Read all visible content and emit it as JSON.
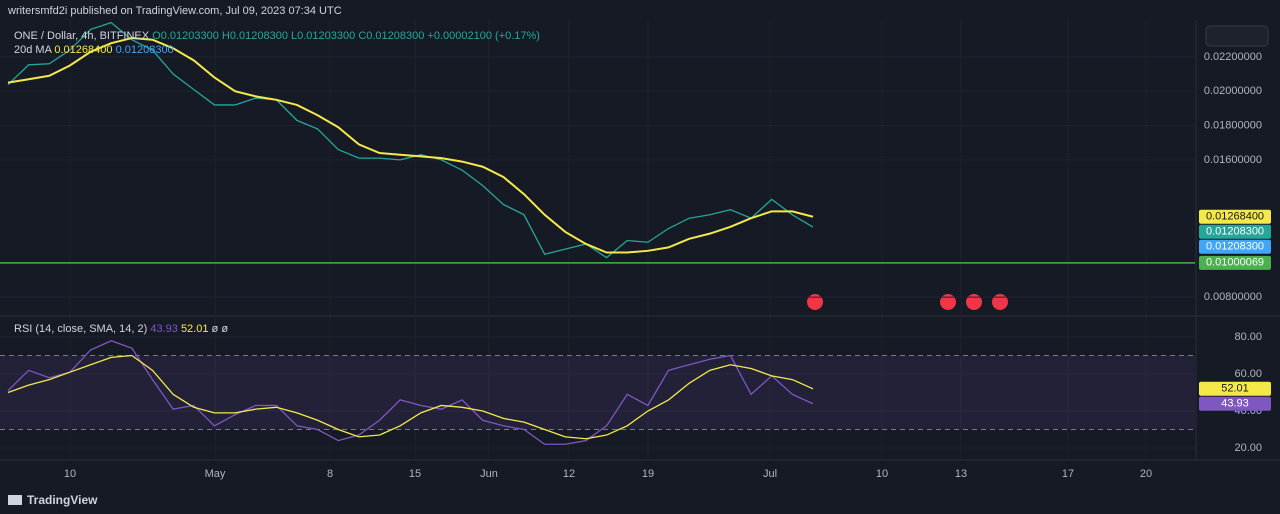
{
  "header": "writersmfd2i published on TradingView.com, Jul 09, 2023 07:34 UTC",
  "footer": "TradingView",
  "x_axis_labels": [
    "10",
    "May",
    "8",
    "15",
    "Jun",
    "12",
    "19",
    "Jul",
    "10",
    "13",
    "17",
    "20"
  ],
  "chart_data": [
    {
      "type": "line",
      "legend_texts": [
        "O0.01203300",
        "H0.01208300",
        "L0.01203300",
        "C0.01208300",
        "+0.00002100 (+0.17%)"
      ],
      "legend_values": [
        "0.01268400",
        "0.01208300"
      ],
      "ylim": [
        0.00696,
        0.02415
      ],
      "yticks": [
        {
          "value": 0.008,
          "label": "0.00800000"
        },
        {
          "value": 0.016,
          "label": "0.01600000"
        },
        {
          "value": 0.018,
          "label": "0.01800000"
        },
        {
          "value": 0.02,
          "label": "0.02000000"
        },
        {
          "value": 0.022,
          "label": "0.02200000"
        }
      ],
      "series": [
        {
          "name": "ONE / Dollar, 4h, BITFINEX",
          "color": "#26a69a",
          "values": [
            0.02038,
            0.02154,
            0.0216,
            0.0224,
            0.0236,
            0.024,
            0.023,
            0.0224,
            0.021,
            0.0201,
            0.0192,
            0.0192,
            0.0196,
            0.0195,
            0.0183,
            0.0178,
            0.0166,
            0.0161,
            0.0161,
            0.016,
            0.0163,
            0.016,
            0.0154,
            0.0145,
            0.0134,
            0.0128,
            0.0105,
            0.0108,
            0.0111,
            0.0103,
            0.0113,
            0.0112,
            0.012,
            0.0126,
            0.0128,
            0.0131,
            0.0126,
            0.0137,
            0.0128,
            0.012083
          ]
        },
        {
          "name": "20d MA",
          "color": "#f5e94a",
          "values": [
            0.0205,
            0.0207,
            0.0209,
            0.0215,
            0.0223,
            0.0228,
            0.0231,
            0.023,
            0.0225,
            0.0218,
            0.0208,
            0.02,
            0.0197,
            0.0195,
            0.0192,
            0.0186,
            0.0179,
            0.0169,
            0.0164,
            0.0163,
            0.0162,
            0.0161,
            0.0159,
            0.0156,
            0.015,
            0.014,
            0.0128,
            0.0118,
            0.0111,
            0.0106,
            0.0106,
            0.0107,
            0.0109,
            0.0114,
            0.0117,
            0.0121,
            0.0126,
            0.013,
            0.013,
            0.012684
          ]
        }
      ],
      "hlines": [
        {
          "value": 0.01000069,
          "label": "0.01000069",
          "color": "#4caf50"
        }
      ],
      "badges": [
        {
          "value": 0.012684,
          "label": "0.01268400",
          "color": "#f5e94a"
        },
        {
          "value": 0.012083,
          "label": "0.01208300",
          "color": "#26a69a"
        },
        {
          "value": 0.012083,
          "label": "0.01208300",
          "color": "#42a5f5"
        }
      ]
    },
    {
      "type": "line",
      "legend_texts": [
        "RSI (14, close, SMA, 14, 2)"
      ],
      "legend_values": [
        "43.93",
        "52.01",
        "ø",
        "ø"
      ],
      "ylim": [
        13.5,
        90.3
      ],
      "yticks": [
        {
          "value": 20,
          "label": "20.00"
        },
        {
          "value": 40,
          "label": "40.00"
        },
        {
          "value": 60,
          "label": "60.00"
        },
        {
          "value": 80,
          "label": "80.00"
        }
      ],
      "bands": [
        30,
        70
      ],
      "series": [
        {
          "color": "#7e57c2",
          "values": [
            51,
            62,
            58,
            61,
            73,
            78,
            74,
            57,
            41,
            43,
            32,
            38,
            43,
            43,
            32,
            30,
            24,
            27,
            35,
            46,
            43,
            41,
            46,
            35,
            32,
            30,
            22,
            22,
            24,
            32,
            49,
            43,
            62,
            65,
            68,
            70,
            49,
            59,
            49,
            43.93
          ]
        },
        {
          "color": "#f5e94a",
          "values": [
            50,
            54,
            57,
            61,
            65,
            69,
            70,
            62,
            49,
            42,
            39,
            39,
            41,
            42,
            39,
            35,
            30,
            26,
            27,
            32,
            39,
            43,
            42,
            40,
            36,
            34,
            30,
            26,
            25,
            27,
            32,
            40,
            46,
            55,
            62,
            65,
            63,
            59,
            57,
            52.01
          ]
        }
      ],
      "badges": [
        {
          "value": 52.01,
          "label": "52.01",
          "color": "#f5e94a"
        },
        {
          "value": 43.93,
          "label": "43.93",
          "color": "#7e57c2"
        }
      ]
    }
  ]
}
